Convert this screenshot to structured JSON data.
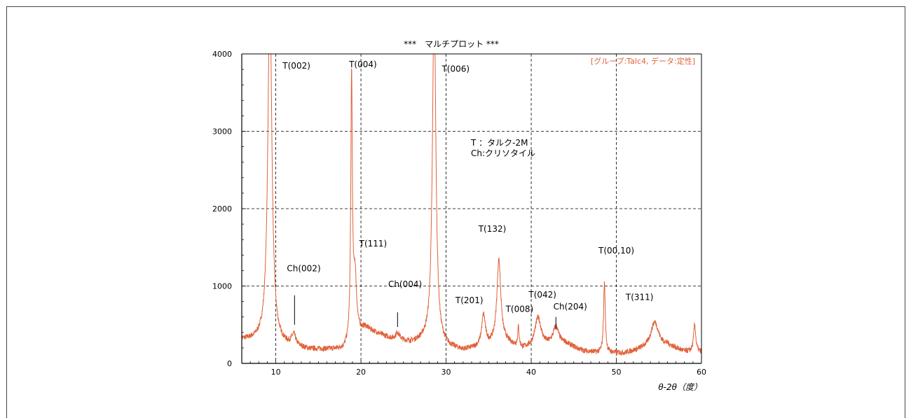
{
  "chart_data": {
    "type": "line",
    "title": "***　マルチプロット ***",
    "subtitle": "[グループ:Talc4, データ:定性]",
    "xlabel": "θ-2θ（度）",
    "ylabel": "",
    "xlim": [
      6,
      60
    ],
    "ylim": [
      0,
      4000
    ],
    "xticks": [
      10,
      20,
      30,
      40,
      50,
      60
    ],
    "yticks": [
      0,
      1000,
      2000,
      3000,
      4000
    ],
    "grid": true,
    "legend_text": [
      "T ：タルク-2M",
      "Ch:クリソタイル"
    ],
    "baseline": [
      [
        6,
        300
      ],
      [
        8,
        280
      ],
      [
        11,
        220
      ],
      [
        14,
        175
      ],
      [
        18,
        175
      ],
      [
        20.5,
        450
      ],
      [
        22,
        380
      ],
      [
        24,
        290
      ],
      [
        26,
        260
      ],
      [
        27.5,
        280
      ],
      [
        30,
        200
      ],
      [
        32,
        160
      ],
      [
        34,
        200
      ],
      [
        37,
        260
      ],
      [
        39,
        180
      ],
      [
        40,
        190
      ],
      [
        42,
        220
      ],
      [
        44,
        250
      ],
      [
        46,
        160
      ],
      [
        48,
        130
      ],
      [
        51,
        130
      ],
      [
        53,
        180
      ],
      [
        56,
        230
      ],
      [
        58,
        150
      ],
      [
        60,
        140
      ]
    ],
    "peaks": [
      {
        "x": 9.3,
        "height": 4600,
        "width": 0.28
      },
      {
        "x": 12.1,
        "height": 140,
        "width": 0.3
      },
      {
        "x": 18.9,
        "height": 3360,
        "width": 0.11
      },
      {
        "x": 19.3,
        "height": 780,
        "width": 0.22
      },
      {
        "x": 24.3,
        "height": 100,
        "width": 0.3
      },
      {
        "x": 28.6,
        "height": 4500,
        "width": 0.24
      },
      {
        "x": 34.4,
        "height": 400,
        "width": 0.26
      },
      {
        "x": 36.2,
        "height": 1080,
        "width": 0.28
      },
      {
        "x": 38.5,
        "height": 250,
        "width": 0.1
      },
      {
        "x": 40.8,
        "height": 380,
        "width": 0.45
      },
      {
        "x": 42.9,
        "height": 230,
        "width": 0.4
      },
      {
        "x": 48.6,
        "height": 910,
        "width": 0.12
      },
      {
        "x": 54.5,
        "height": 330,
        "width": 0.55
      },
      {
        "x": 59.2,
        "height": 360,
        "width": 0.15
      }
    ],
    "annotations": [
      {
        "text": "T(002)",
        "x": 10.8,
        "y": 3810
      },
      {
        "text": "T(004)",
        "x": 18.6,
        "y": 3830
      },
      {
        "text": "T(006)",
        "x": 29.5,
        "y": 3770
      },
      {
        "text": "T(111)",
        "x": 19.8,
        "y": 1510
      },
      {
        "text": "Ch(002)",
        "x": 11.3,
        "y": 1190
      },
      {
        "text": "Ch(004)",
        "x": 23.2,
        "y": 985
      },
      {
        "text": "T(132)",
        "x": 33.8,
        "y": 1700
      },
      {
        "text": "T(201)",
        "x": 31.1,
        "y": 780
      },
      {
        "text": "T(008)",
        "x": 37.0,
        "y": 665
      },
      {
        "text": "T(042)",
        "x": 39.7,
        "y": 850
      },
      {
        "text": "Ch(204)",
        "x": 42.6,
        "y": 695
      },
      {
        "text": "T(00,10)",
        "x": 47.9,
        "y": 1420
      },
      {
        "text": "T(311)",
        "x": 51.1,
        "y": 820
      }
    ],
    "markers": [
      {
        "x": 12.2,
        "y1": 880,
        "y2": 500
      },
      {
        "x": 24.3,
        "y1": 660,
        "y2": 470
      },
      {
        "x": 42.9,
        "y1": 600,
        "y2": 440
      }
    ]
  }
}
